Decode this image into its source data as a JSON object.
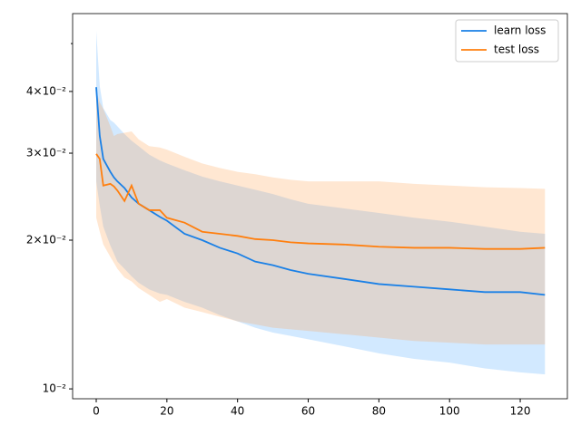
{
  "chart_data": {
    "type": "line",
    "log_y": true,
    "x": [
      0,
      1,
      2,
      4,
      5,
      6,
      8,
      10,
      12,
      15,
      18,
      20,
      25,
      30,
      35,
      40,
      45,
      50,
      55,
      60,
      70,
      80,
      90,
      100,
      110,
      120,
      127
    ],
    "series": [
      {
        "name": "learn loss",
        "color": "#1a80e6",
        "band_color": "#4da6ff",
        "values": [
          0.0408,
          0.0325,
          0.0292,
          0.0275,
          0.0268,
          0.0263,
          0.0255,
          0.0244,
          0.0237,
          0.023,
          0.0223,
          0.0219,
          0.0206,
          0.02,
          0.0193,
          0.0188,
          0.0181,
          0.0178,
          0.0174,
          0.0171,
          0.0167,
          0.0163,
          0.0161,
          0.0159,
          0.0157,
          0.0157,
          0.0155
        ],
        "upper": [
          0.053,
          0.041,
          0.037,
          0.035,
          0.0346,
          0.034,
          0.0328,
          0.0318,
          0.031,
          0.0298,
          0.029,
          0.0286,
          0.0277,
          0.0269,
          0.0263,
          0.0258,
          0.0253,
          0.0248,
          0.0242,
          0.0237,
          0.0232,
          0.0227,
          0.0222,
          0.0218,
          0.0213,
          0.0208,
          0.0206
        ],
        "lower": [
          0.0263,
          0.0235,
          0.0213,
          0.0195,
          0.0188,
          0.0181,
          0.0175,
          0.0169,
          0.0164,
          0.0159,
          0.0156,
          0.0155,
          0.015,
          0.0146,
          0.0141,
          0.0137,
          0.0133,
          0.013,
          0.0128,
          0.0126,
          0.0122,
          0.0118,
          0.0115,
          0.0113,
          0.011,
          0.0108,
          0.0107
        ]
      },
      {
        "name": "test loss",
        "color": "#ff7f0e",
        "band_color": "#ff9f4a",
        "values": [
          0.0299,
          0.0292,
          0.0258,
          0.026,
          0.0257,
          0.0252,
          0.024,
          0.0258,
          0.0237,
          0.023,
          0.023,
          0.0222,
          0.0217,
          0.0208,
          0.0206,
          0.0204,
          0.0201,
          0.02,
          0.0198,
          0.0197,
          0.0196,
          0.0194,
          0.0193,
          0.0193,
          0.0192,
          0.0192,
          0.0193
        ],
        "upper": [
          0.0401,
          0.038,
          0.0369,
          0.034,
          0.0325,
          0.0328,
          0.033,
          0.0332,
          0.032,
          0.031,
          0.0308,
          0.0305,
          0.0295,
          0.0286,
          0.028,
          0.0275,
          0.0272,
          0.0268,
          0.0265,
          0.0263,
          0.0263,
          0.0263,
          0.026,
          0.0258,
          0.0256,
          0.0255,
          0.0254
        ],
        "lower": [
          0.0222,
          0.0208,
          0.0196,
          0.0185,
          0.018,
          0.0175,
          0.0168,
          0.0165,
          0.016,
          0.0155,
          0.015,
          0.0152,
          0.0146,
          0.0143,
          0.014,
          0.0137,
          0.0135,
          0.0133,
          0.0132,
          0.0131,
          0.0129,
          0.0127,
          0.0125,
          0.0124,
          0.0123,
          0.0123,
          0.0123
        ]
      }
    ],
    "xlim": [
      -6.68,
      133.35
    ],
    "xticks": [
      0,
      20,
      40,
      60,
      80,
      100,
      120
    ],
    "ylim": [
      0.00955,
      0.0575
    ],
    "yticks": [
      {
        "value": 0.01,
        "label": "10⁻²"
      },
      {
        "value": 0.02,
        "label": "2×10⁻²"
      },
      {
        "value": 0.03,
        "label": "3×10⁻²"
      },
      {
        "value": 0.04,
        "label": "4×10⁻²"
      }
    ],
    "yminorticks": [
      0.05
    ],
    "legend": "upper right"
  }
}
